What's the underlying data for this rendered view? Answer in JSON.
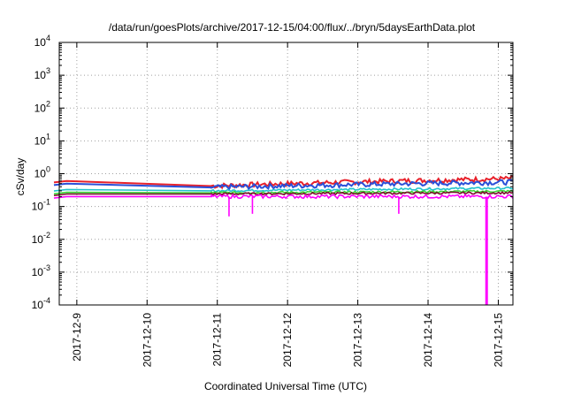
{
  "chart_data": {
    "type": "line",
    "title": "/data/run/goesPlots/archive/2017-12-15/04:00/flux/../bryn/5daysEarthData.plot",
    "xlabel": "Coordinated Universal Time (UTC)",
    "ylabel": "cSv/day",
    "yscale": "log",
    "ylim": [
      0.0001,
      10000
    ],
    "xlim": [
      "2017-12-08 18:00",
      "2017-12-15 05:00"
    ],
    "y_ticks": [
      {
        "value": 0.0001,
        "base": "10",
        "exp": "-4"
      },
      {
        "value": 0.001,
        "base": "10",
        "exp": "-3"
      },
      {
        "value": 0.01,
        "base": "10",
        "exp": "-2"
      },
      {
        "value": 0.1,
        "base": "10",
        "exp": "-1"
      },
      {
        "value": 1,
        "base": "10",
        "exp": "0"
      },
      {
        "value": 10,
        "base": "10",
        "exp": "1"
      },
      {
        "value": 100,
        "base": "10",
        "exp": "2"
      },
      {
        "value": 1000,
        "base": "10",
        "exp": "3"
      },
      {
        "value": 10000,
        "base": "10",
        "exp": "4"
      }
    ],
    "x_ticks": [
      {
        "value": "2017-12-09",
        "label": "2017-12-9"
      },
      {
        "value": "2017-12-10",
        "label": "2017-12-10"
      },
      {
        "value": "2017-12-11",
        "label": "2017-12-11"
      },
      {
        "value": "2017-12-12",
        "label": "2017-12-12"
      },
      {
        "value": "2017-12-13",
        "label": "2017-12-13"
      },
      {
        "value": "2017-12-14",
        "label": "2017-12-14"
      },
      {
        "value": "2017-12-15",
        "label": "2017-12-15"
      }
    ],
    "grid": true,
    "legend": "none",
    "series": [
      {
        "color": "#e8212b",
        "values": [
          [
            "2017-12-08 20:30",
            0.6
          ],
          [
            "2017-12-10 22:00",
            0.42
          ],
          [
            "2017-12-15 05:00",
            0.7
          ]
        ]
      },
      {
        "color": "#2a4fd8",
        "values": [
          [
            "2017-12-08 20:30",
            0.5
          ],
          [
            "2017-12-10 22:00",
            0.38
          ],
          [
            "2017-12-15 05:00",
            0.55
          ]
        ]
      },
      {
        "color": "#22c3cc",
        "values": [
          [
            "2017-12-08 20:30",
            0.33
          ],
          [
            "2017-12-10 22:00",
            0.3
          ],
          [
            "2017-12-15 05:00",
            0.36
          ]
        ]
      },
      {
        "color": "#39d433",
        "values": [
          [
            "2017-12-08 20:30",
            0.27
          ],
          [
            "2017-12-10 22:00",
            0.26
          ],
          [
            "2017-12-15 05:00",
            0.29
          ]
        ]
      },
      {
        "color": "#7a0f2a",
        "values": [
          [
            "2017-12-08 20:30",
            0.24
          ],
          [
            "2017-12-10 22:00",
            0.24
          ],
          [
            "2017-12-15 05:00",
            0.26
          ]
        ]
      },
      {
        "color": "#ff00ff",
        "values": [
          [
            "2017-12-08 20:30",
            0.2
          ],
          [
            "2017-12-10 22:00",
            0.2
          ],
          [
            "2017-12-15 05:00",
            0.2
          ]
        ],
        "dips": [
          [
            "2017-12-11 04:00",
            0.05
          ],
          [
            "2017-12-11 12:00",
            0.06
          ],
          [
            "2017-12-13 14:00",
            0.06
          ],
          [
            "2017-12-14 20:00",
            0.0001
          ]
        ]
      }
    ]
  }
}
